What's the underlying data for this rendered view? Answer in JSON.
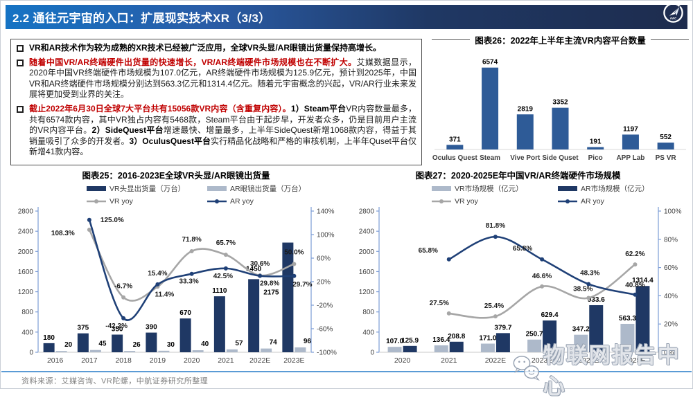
{
  "header": {
    "title": "2.2 通往元宇宙的入口：扩展现实技术XR（3/3）",
    "logo": {
      "icon": "avic-paper-plane-logo",
      "label": "AVIC"
    }
  },
  "bullets": [
    {
      "segments": [
        {
          "style": "bold-black",
          "text": "VR和AR技术作为较为成熟的XR技术已经被广泛应用，全球VR头显/AR眼镜出货量保持高增长。"
        }
      ]
    },
    {
      "segments": [
        {
          "style": "bold-red",
          "text": "随着中国VR/AR终端硬件出货量的快速增长，VR/AR终端硬件市场规模也在不断扩大。"
        },
        {
          "style": "black",
          "text": "艾媒数据显示，2020年中国VR终端硬件市场规模为107.0亿元，AR终端硬件市场规模为125.9亿元，预计到2025年，中国VR和AR终端硬件市场规模分别达到563.3亿元和1314.4亿元。随着元宇宙概念的兴起，VR/AR行业未来发展将更加受到业界的关注。"
        }
      ]
    },
    {
      "segments": [
        {
          "style": "bold-red",
          "text": "截止2022年6月30日全球7大平台共有15056款VR内容（含重复内容）。"
        },
        {
          "style": "bold-black",
          "text": "1）Steam平台"
        },
        {
          "style": "black",
          "text": "VR内容数量最多，共有6574款内容，其中VR独占内容有5468款，Steam平台由于起步早，开发者众多，仍是目前用户主流的VR内容平台。"
        },
        {
          "style": "bold-black",
          "text": "2）SideQuest平台"
        },
        {
          "style": "black",
          "text": "增速最快、增量最多，上半年SideQuest新增1068款内容，得益于其销量吸引了众多的开发者。"
        },
        {
          "style": "bold-black",
          "text": "3）OculusQuest平台"
        },
        {
          "style": "black",
          "text": "实行精品化战略和严格的审核机制，上半年Quset平台仅新增41款内容。"
        }
      ]
    }
  ],
  "chart_data": [
    {
      "id": "chart26",
      "type": "bar",
      "title": "图表26：2022年上半年主流VR内容平台数量",
      "categories": [
        "Oculus Quest",
        "Steam",
        "Vive Port",
        "Side Quset",
        "Pico",
        "APP Lab",
        "PS VR"
      ],
      "values": [
        371,
        6574,
        2819,
        3352,
        191,
        1197,
        552
      ],
      "labels": [
        "371",
        "6574",
        "2819",
        "3352",
        "191",
        "1197",
        "552"
      ],
      "bar_color": "#2E5B97",
      "ylim": [
        0,
        7000
      ],
      "grid": false,
      "legend": "none"
    },
    {
      "id": "chart25",
      "type": "bar+line",
      "title": "图表25：2016-2023E全球VR头显/AR眼镜出货量",
      "categories": [
        "2016",
        "2017",
        "2018",
        "2019",
        "2020",
        "2021",
        "2022E",
        "2023E"
      ],
      "bar_series": [
        {
          "name": "VR头显出货量（万台）",
          "color": "#1F3864",
          "values": [
            180,
            375,
            350,
            390,
            670,
            1110,
            1450,
            2175
          ],
          "labels": [
            "180",
            "375",
            "350",
            "390",
            "670",
            "1110",
            "1450",
            "2175"
          ],
          "label_default": [
            0,
            -5
          ],
          "label_offsets": [
            null,
            null,
            null,
            null,
            null,
            null,
            [
              0,
              -12
            ],
            [
              -24,
              75
            ]
          ]
        },
        {
          "name": "AR眼镜出货量（万台）",
          "color": "#ADB9CA",
          "values": [
            20,
            45,
            26,
            30,
            40,
            57,
            74,
            96
          ],
          "labels": [
            "20",
            "45",
            "26",
            "30",
            "40",
            "57",
            "74",
            "96"
          ],
          "label_default": [
            10,
            -6
          ],
          "label_offsets": null
        }
      ],
      "line_series": [
        {
          "name": "VR yoy",
          "color": "#A6A6A6",
          "values": [
            null,
            108.3,
            -6.7,
            11.4,
            71.8,
            65.7,
            30.6,
            50.0
          ],
          "labels": [
            null,
            "108.3%",
            "-6.7%",
            "11.4%",
            "71.8%",
            "65.7%",
            "30.6%",
            "50.0%"
          ],
          "label_offsets": [
            null,
            [
              -38,
              8
            ],
            [
              0,
              -13
            ],
            [
              10,
              14
            ],
            [
              0,
              -14
            ],
            [
              0,
              -14
            ],
            [
              0,
              -14
            ],
            [
              0,
              -14
            ]
          ]
        },
        {
          "name": "AR yoy",
          "color": "#1F4077",
          "values": [
            null,
            125.0,
            -42.2,
            15.4,
            33.3,
            42.5,
            29.8,
            29.7
          ],
          "labels": [
            null,
            "125.0%",
            "-42.2%",
            "15.4%",
            "33.3%",
            "42.5%",
            "29.8%",
            "29.7%"
          ],
          "label_offsets": [
            null,
            [
              33,
              3
            ],
            [
              -10,
              14
            ],
            [
              0,
              -13
            ],
            [
              -4,
              14
            ],
            [
              -4,
              14
            ],
            [
              14,
              14
            ],
            [
              12,
              15
            ]
          ]
        }
      ],
      "left_axis": {
        "min": 0,
        "max": 2800,
        "tick_values": [
          0,
          400,
          800,
          1200,
          1600,
          2000,
          2400,
          2800
        ],
        "tick_labels": [
          "0",
          "400",
          "800",
          "1200",
          "1600",
          "2000",
          "2400",
          "2800"
        ]
      },
      "right_axis": {
        "min": -100,
        "max": 140,
        "tick_values": [
          -100,
          -60,
          -20,
          20,
          60,
          100,
          140
        ],
        "tick_labels": [
          "-100%",
          "-60%",
          "-20%",
          "20%",
          "60%",
          "100%",
          "140%"
        ]
      },
      "grid": false,
      "legend_position": "top"
    },
    {
      "id": "chart27",
      "type": "bar+line",
      "title": "图表27：2020-2025E年中国VR/AR终端硬件市场规模",
      "categories": [
        "2020",
        "2021",
        "2022E",
        "2023E",
        "2024E",
        "2025E"
      ],
      "bar_series": [
        {
          "name": "VR市场规模（亿元）",
          "color": "#ADB9CA",
          "values": [
            107.0,
            136.4,
            171.0,
            250.7,
            347.2,
            563.3
          ],
          "labels": [
            "107.0",
            "136.4",
            "171.0",
            "250.7",
            "347.2",
            "563.3"
          ],
          "label_default": [
            0,
            -5
          ],
          "label_offsets": null
        },
        {
          "name": "AR市场规模（亿元）",
          "color": "#1F3864",
          "values": [
            125.9,
            208.8,
            379.7,
            629.4,
            933.6,
            1314.4
          ],
          "labels": [
            "125.9",
            "208.8",
            "379.7",
            "629.4",
            "933.6",
            "1314.4"
          ],
          "label_default": [
            0,
            -5
          ],
          "label_offsets": null
        }
      ],
      "line_series": [
        {
          "name": "VR yoy",
          "color": "#A6A6A6",
          "values": [
            null,
            27.5,
            25.4,
            46.6,
            38.5,
            62.2
          ],
          "labels": [
            null,
            "27.5%",
            "25.4%",
            "46.6%",
            "38.5%",
            "62.2%"
          ],
          "label_offsets": [
            null,
            [
              -14,
              -12
            ],
            [
              -2,
              -12
            ],
            [
              0,
              -12
            ],
            [
              -8,
              -10
            ],
            [
              0,
              -12
            ]
          ]
        },
        {
          "name": "AR yoy",
          "color": "#1F4077",
          "values": [
            null,
            65.8,
            81.8,
            65.8,
            48.3,
            40.8
          ],
          "labels": [
            null,
            "65.8%",
            "81.8%",
            "65.8%",
            "48.3%",
            "40.8%"
          ],
          "label_offsets": [
            null,
            [
              -30,
              -10
            ],
            [
              0,
              -13
            ],
            [
              -28,
              -13
            ],
            [
              2,
              -13
            ],
            [
              0,
              -11
            ]
          ]
        }
      ],
      "left_axis": {
        "min": 0,
        "max": 2800,
        "tick_values": [
          0,
          400,
          800,
          1200,
          1600,
          2000,
          2400,
          2800
        ],
        "tick_labels": [
          "0",
          "400",
          "800",
          "1200",
          "1600",
          "2000",
          "2400",
          "2800"
        ]
      },
      "right_axis": {
        "min": 0,
        "max": 100,
        "tick_values": [
          0,
          20,
          40,
          60,
          80,
          100
        ],
        "tick_labels": [
          "0%",
          "20%",
          "40%",
          "60%",
          "80%",
          "100%"
        ]
      },
      "grid": false,
      "legend_position": "top"
    }
  ],
  "footer": {
    "source": "资料来源：艾媒咨询、VR陀螺，中航证券研究所整理"
  },
  "watermark": {
    "icon": "chat-bubbles-icon",
    "text": "物联网报告中心"
  },
  "colors": {
    "header_left": "#1573C4",
    "header_right": "#1e2c4e",
    "accent_red": "#C00000",
    "bar_navy": "#1F3864",
    "bar_light": "#ADB9CA",
    "line_gray": "#A6A6A6",
    "line_navy": "#1F4077",
    "separator_blue": "#5B9BD5"
  }
}
